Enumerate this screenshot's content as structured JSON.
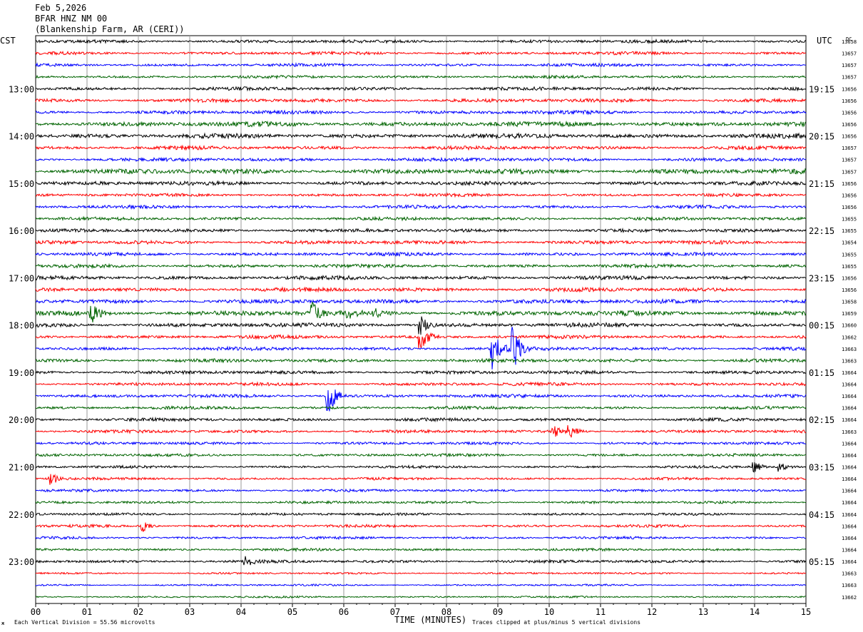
{
  "header": {
    "date": "Feb 5,2026",
    "station": "BFAR HNZ NM 00",
    "site": "(Blankenship Farm, AR (CERI))"
  },
  "chart_data": {
    "type": "helicorder",
    "title": "",
    "left_timezone": "CST",
    "right_timezone": "UTC",
    "dc_header": "DC",
    "xlabel": "TIME (MINUTES)",
    "x_ticks": [
      "00",
      "01",
      "02",
      "03",
      "04",
      "05",
      "06",
      "07",
      "08",
      "09",
      "10",
      "11",
      "12",
      "13",
      "14",
      "15"
    ],
    "xlim": [
      0,
      15
    ],
    "trace_colors": [
      "#000000",
      "#ff0000",
      "#0000ff",
      "#006400"
    ],
    "left_hour_labels": [
      {
        "row": 4,
        "text": "13:00"
      },
      {
        "row": 8,
        "text": "14:00"
      },
      {
        "row": 12,
        "text": "15:00"
      },
      {
        "row": 16,
        "text": "16:00"
      },
      {
        "row": 20,
        "text": "17:00"
      },
      {
        "row": 24,
        "text": "18:00"
      },
      {
        "row": 28,
        "text": "19:00"
      },
      {
        "row": 32,
        "text": "20:00"
      },
      {
        "row": 36,
        "text": "21:00"
      },
      {
        "row": 40,
        "text": "22:00"
      },
      {
        "row": 44,
        "text": "23:00"
      }
    ],
    "right_hour_labels": [
      {
        "row": 4,
        "text": "19:15"
      },
      {
        "row": 8,
        "text": "20:15"
      },
      {
        "row": 12,
        "text": "21:15"
      },
      {
        "row": 16,
        "text": "22:15"
      },
      {
        "row": 20,
        "text": "23:15"
      },
      {
        "row": 24,
        "text": "00:15"
      },
      {
        "row": 28,
        "text": "01:15"
      },
      {
        "row": 32,
        "text": "02:15"
      },
      {
        "row": 36,
        "text": "03:15"
      },
      {
        "row": 40,
        "text": "04:15"
      },
      {
        "row": 44,
        "text": "05:15"
      }
    ],
    "dc_values": [
      "13658",
      "13657",
      "13657",
      "13657",
      "13656",
      "13656",
      "13656",
      "13656",
      "13656",
      "13657",
      "13657",
      "13657",
      "13656",
      "13656",
      "13656",
      "13655",
      "13655",
      "13654",
      "13655",
      "13655",
      "13656",
      "13656",
      "13658",
      "13659",
      "13660",
      "13662",
      "13663",
      "13663",
      "13664",
      "13664",
      "13664",
      "13664",
      "13664",
      "13663",
      "13664",
      "13664",
      "13664",
      "13664",
      "13664",
      "13664",
      "13664",
      "13664",
      "13664",
      "13664",
      "13664",
      "13663",
      "13663",
      "13662"
    ],
    "noise_level": [
      0.9,
      0.8,
      0.8,
      0.7,
      1.0,
      1.1,
      1.1,
      1.6,
      1.5,
      1.1,
      1.0,
      1.7,
      1.2,
      0.8,
      0.9,
      0.9,
      1.0,
      1.1,
      1.0,
      1.0,
      1.2,
      1.2,
      1.3,
      1.7,
      1.3,
      1.0,
      1.0,
      1.0,
      1.0,
      0.9,
      0.9,
      0.8,
      0.9,
      0.8,
      0.7,
      0.7,
      0.6,
      0.6,
      0.6,
      0.6,
      0.6,
      0.7,
      0.6,
      0.6,
      0.8,
      0.3,
      0.3,
      0.3
    ],
    "events": [
      {
        "row": 23,
        "minute": 1.1,
        "amplitude": 1.0
      },
      {
        "row": 23,
        "minute": 5.4,
        "amplitude": 1.0
      },
      {
        "row": 23,
        "minute": 6.1,
        "amplitude": 0.4
      },
      {
        "row": 23,
        "minute": 6.6,
        "amplitude": 0.4
      },
      {
        "row": 24,
        "minute": 7.5,
        "amplitude": 1.0
      },
      {
        "row": 25,
        "minute": 7.5,
        "amplitude": 1.5
      },
      {
        "row": 26,
        "minute": 8.9,
        "amplitude": 2.3
      },
      {
        "row": 26,
        "minute": 9.3,
        "amplitude": 2.4
      },
      {
        "row": 30,
        "minute": 5.7,
        "amplitude": 2.5
      },
      {
        "row": 33,
        "minute": 10.1,
        "amplitude": 0.7
      },
      {
        "row": 33,
        "minute": 10.4,
        "amplitude": 0.9
      },
      {
        "row": 36,
        "minute": 14.0,
        "amplitude": 0.6
      },
      {
        "row": 36,
        "minute": 14.5,
        "amplitude": 0.5
      },
      {
        "row": 37,
        "minute": 0.3,
        "amplitude": 0.7
      },
      {
        "row": 41,
        "minute": 2.1,
        "amplitude": 0.6
      },
      {
        "row": 44,
        "minute": 4.1,
        "amplitude": 0.5
      }
    ],
    "footer": {
      "scale": "Each Vertical Division =   55.56 microvolts",
      "clip": "Traces clipped at plus/minus 5 vertical divisions"
    }
  }
}
